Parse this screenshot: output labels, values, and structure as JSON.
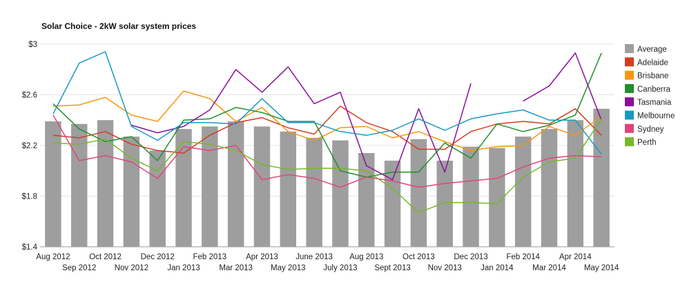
{
  "chart_data": {
    "type": "bar",
    "title": "Solar Choice - 2kW solar system prices",
    "xlabel": "",
    "ylabel": "",
    "ylim": [
      1.4,
      3.0
    ],
    "yticks": [
      "$3",
      "$2.6",
      "$2.2",
      "$1.8",
      "$1.4"
    ],
    "ytick_values": [
      3.0,
      2.6,
      2.2,
      1.8,
      1.4
    ],
    "grid": true,
    "legend_position": "right",
    "categories": [
      "Aug 2012",
      "Sep 2012",
      "Oct 2012",
      "Nov 2012",
      "Dec 2012",
      "Jan 2013",
      "Feb 2013",
      "Mar 2013",
      "Apr 2013",
      "May 2013",
      "June 2013",
      "July 2013",
      "Aug 2013",
      "Sept 2013",
      "Oct 2013",
      "Nov 2013",
      "Dec 2013",
      "Jan 2014",
      "Feb 2014",
      "Mar 2014",
      "Apr 2014",
      "May 2014"
    ],
    "bar_series": {
      "name": "Average",
      "color": "#9e9e9e",
      "values": [
        2.39,
        2.37,
        2.4,
        2.27,
        2.16,
        2.33,
        2.35,
        2.39,
        2.35,
        2.31,
        2.26,
        2.24,
        2.14,
        2.08,
        2.25,
        2.08,
        2.19,
        2.18,
        2.27,
        2.33,
        2.4,
        2.49
      ]
    },
    "series": [
      {
        "name": "Adelaide",
        "color": "#d63b1f",
        "values": [
          2.28,
          2.26,
          2.31,
          2.21,
          2.16,
          2.14,
          2.28,
          2.38,
          2.42,
          2.34,
          2.29,
          2.51,
          2.38,
          2.31,
          2.17,
          2.17,
          2.31,
          2.37,
          2.39,
          2.37,
          2.49,
          2.28
        ]
      },
      {
        "name": "Brisbane",
        "color": "#f7960f",
        "values": [
          2.51,
          2.52,
          2.58,
          2.44,
          2.39,
          2.63,
          2.57,
          2.39,
          2.5,
          2.31,
          2.24,
          2.34,
          2.35,
          2.26,
          2.31,
          2.23,
          2.16,
          2.19,
          2.2,
          2.35,
          2.28,
          2.43
        ]
      },
      {
        "name": "Canberra",
        "color": "#1f8f2b",
        "values": [
          2.53,
          2.33,
          2.23,
          2.27,
          2.08,
          2.4,
          2.41,
          2.5,
          2.46,
          2.39,
          2.39,
          2.0,
          1.95,
          1.99,
          1.99,
          2.22,
          2.1,
          2.37,
          2.31,
          2.36,
          2.44,
          2.93
        ]
      },
      {
        "name": "Tasmania",
        "color": "#8b0f9c",
        "values": [
          null,
          null,
          null,
          2.36,
          2.3,
          2.35,
          2.48,
          2.8,
          2.62,
          2.82,
          2.53,
          2.62,
          2.04,
          1.93,
          2.49,
          1.99,
          2.69,
          null,
          2.55,
          2.67,
          2.93,
          2.4
        ]
      },
      {
        "name": "Melbourne",
        "color": "#1799c4",
        "values": [
          2.45,
          2.85,
          2.94,
          2.35,
          2.24,
          2.38,
          2.38,
          2.37,
          2.57,
          2.38,
          2.38,
          2.31,
          2.28,
          2.32,
          2.41,
          2.32,
          2.41,
          2.45,
          2.48,
          2.4,
          2.4,
          2.13
        ]
      },
      {
        "name": "Sydney",
        "color": "#e0457a",
        "values": [
          2.44,
          2.08,
          2.12,
          2.07,
          1.94,
          2.19,
          2.16,
          2.2,
          1.93,
          1.97,
          1.94,
          1.87,
          1.95,
          1.92,
          1.87,
          1.9,
          1.92,
          1.94,
          2.03,
          2.1,
          2.12,
          2.11
        ]
      },
      {
        "name": "Perth",
        "color": "#76b82a",
        "values": [
          2.22,
          2.21,
          2.25,
          2.1,
          2.0,
          2.23,
          2.21,
          2.16,
          2.05,
          2.01,
          2.02,
          2.02,
          2.0,
          1.86,
          1.67,
          1.75,
          1.75,
          1.74,
          1.95,
          2.07,
          2.1,
          2.41
        ]
      }
    ]
  }
}
